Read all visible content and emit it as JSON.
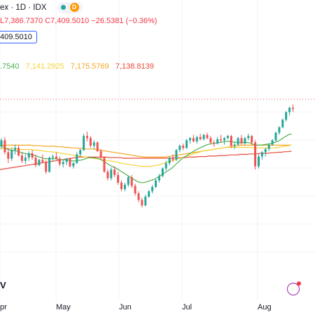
{
  "header": {
    "title_fragment": "ex · 1D · IDX",
    "timeframe_badge": "D",
    "ohlc_text": "L7,386.7370 C7,409.5010 −26.5381 (−0.36%)",
    "price_box": "409.5010",
    "ma_fragment": ".7540",
    "ma_values": [
      "7,141.2925",
      "7,175.5769",
      "7,138.8139"
    ],
    "ma_colors": [
      "#f2d338",
      "#f5a623",
      "#e84b3a"
    ]
  },
  "watermark": "V",
  "colors": {
    "up": "#26a69a",
    "down": "#ef5350",
    "ma_green": "#4caf50",
    "ma_yellow": "#f2d338",
    "ma_orange": "#f5a623",
    "ma_red": "#e84b3a",
    "grid": "#f0f3fa"
  },
  "chart_data": {
    "type": "candlestick",
    "x_ticks": [
      "pr",
      "May",
      "Jun",
      "Jul",
      "Aug"
    ],
    "current_price": 7409.501,
    "candles": [
      [
        6980,
        7050,
        6950,
        7030
      ],
      [
        7030,
        7060,
        6900,
        6920
      ],
      [
        6920,
        6960,
        6820,
        6860
      ],
      [
        6860,
        6960,
        6840,
        6940
      ],
      [
        6940,
        6990,
        6900,
        6960
      ],
      [
        6960,
        6980,
        6880,
        6890
      ],
      [
        6890,
        6920,
        6820,
        6840
      ],
      [
        6840,
        6900,
        6810,
        6870
      ],
      [
        6870,
        6930,
        6840,
        6910
      ],
      [
        6910,
        6940,
        6850,
        6870
      ],
      [
        6870,
        6900,
        6780,
        6800
      ],
      [
        6800,
        6860,
        6790,
        6850
      ],
      [
        6850,
        6900,
        6820,
        6830
      ],
      [
        6830,
        6850,
        6720,
        6740
      ],
      [
        6740,
        6880,
        6730,
        6870
      ],
      [
        6870,
        6900,
        6840,
        6880
      ],
      [
        6880,
        6920,
        6850,
        6860
      ],
      [
        6860,
        6880,
        6790,
        6810
      ],
      [
        6810,
        6850,
        6780,
        6830
      ],
      [
        6830,
        6870,
        6800,
        6860
      ],
      [
        6860,
        6870,
        6780,
        6790
      ],
      [
        6790,
        6830,
        6770,
        6820
      ],
      [
        6820,
        6920,
        6810,
        6900
      ],
      [
        6900,
        6950,
        6880,
        6940
      ],
      [
        6940,
        7090,
        6930,
        7070
      ],
      [
        7070,
        7110,
        7020,
        7050
      ],
      [
        7050,
        7070,
        6960,
        6980
      ],
      [
        6980,
        7030,
        6950,
        7010
      ],
      [
        7010,
        7020,
        6920,
        6930
      ],
      [
        6930,
        6950,
        6850,
        6870
      ],
      [
        6870,
        6880,
        6730,
        6740
      ],
      [
        6740,
        6760,
        6660,
        6680
      ],
      [
        6680,
        6780,
        6660,
        6760
      ],
      [
        6760,
        6790,
        6690,
        6710
      ],
      [
        6710,
        6740,
        6620,
        6640
      ],
      [
        6640,
        6660,
        6560,
        6580
      ],
      [
        6580,
        6640,
        6560,
        6620
      ],
      [
        6620,
        6700,
        6600,
        6690
      ],
      [
        6690,
        6710,
        6590,
        6610
      ],
      [
        6610,
        6630,
        6520,
        6540
      ],
      [
        6540,
        6560,
        6460,
        6480
      ],
      [
        6480,
        6500,
        6410,
        6430
      ],
      [
        6430,
        6530,
        6420,
        6510
      ],
      [
        6510,
        6570,
        6500,
        6560
      ],
      [
        6560,
        6620,
        6540,
        6600
      ],
      [
        6600,
        6670,
        6590,
        6660
      ],
      [
        6660,
        6720,
        6640,
        6700
      ],
      [
        6700,
        6780,
        6690,
        6770
      ],
      [
        6770,
        6840,
        6750,
        6820
      ],
      [
        6820,
        6880,
        6800,
        6870
      ],
      [
        6870,
        6900,
        6830,
        6850
      ],
      [
        6850,
        6950,
        6840,
        6940
      ],
      [
        6940,
        6990,
        6920,
        6980
      ],
      [
        6980,
        7000,
        6940,
        6960
      ],
      [
        6960,
        7040,
        6950,
        7030
      ],
      [
        7030,
        7060,
        7000,
        7050
      ],
      [
        7050,
        7080,
        7010,
        7020
      ],
      [
        7020,
        7070,
        7000,
        7060
      ],
      [
        7060,
        7090,
        7030,
        7040
      ],
      [
        7040,
        7090,
        7030,
        7080
      ],
      [
        7080,
        7100,
        7040,
        7050
      ],
      [
        7050,
        7070,
        6990,
        7010
      ],
      [
        7010,
        7030,
        6970,
        7000
      ],
      [
        7000,
        7060,
        6990,
        7040
      ],
      [
        7040,
        7080,
        7010,
        7030
      ],
      [
        7030,
        7060,
        6990,
        7050
      ],
      [
        7050,
        7080,
        7040,
        7070
      ],
      [
        7070,
        7080,
        6960,
        6980
      ],
      [
        6980,
        7010,
        6950,
        6990
      ],
      [
        6990,
        7060,
        6980,
        7050
      ],
      [
        7050,
        7080,
        6990,
        7000
      ],
      [
        7000,
        7060,
        6990,
        7050
      ],
      [
        7050,
        7090,
        7030,
        7070
      ],
      [
        7070,
        7080,
        6990,
        7010
      ],
      [
        7010,
        7030,
        6760,
        6790
      ],
      [
        6790,
        6900,
        6770,
        6880
      ],
      [
        6880,
        6930,
        6850,
        6920
      ],
      [
        6920,
        6960,
        6880,
        6950
      ],
      [
        6950,
        7000,
        6930,
        6990
      ],
      [
        6990,
        7040,
        6980,
        7030
      ],
      [
        7030,
        7110,
        7020,
        7100
      ],
      [
        7100,
        7160,
        7080,
        7150
      ],
      [
        7150,
        7230,
        7140,
        7220
      ],
      [
        7220,
        7300,
        7200,
        7290
      ],
      [
        7290,
        7340,
        7260,
        7330
      ],
      [
        7330,
        7360,
        7290,
        7320
      ]
    ],
    "ma_green": [
      6980,
      6970,
      6950,
      6940,
      6935,
      6930,
      6920,
      6910,
      6905,
      6900,
      6890,
      6880,
      6870,
      6860,
      6860,
      6860,
      6860,
      6855,
      6850,
      6850,
      6845,
      6840,
      6840,
      6845,
      6850,
      6860,
      6870,
      6870,
      6865,
      6860,
      6840,
      6820,
      6800,
      6785,
      6770,
      6750,
      6730,
      6710,
      6690,
      6670,
      6650,
      6640,
      6640,
      6650,
      6660,
      6670,
      6690,
      6710,
      6730,
      6750,
      6770,
      6800,
      6830,
      6860,
      6880,
      6900,
      6920,
      6940,
      6955,
      6970,
      6985,
      6995,
      7000,
      7005,
      7010,
      7015,
      7020,
      7020,
      7015,
      7010,
      7010,
      7010,
      7010,
      7005,
      6990,
      6985,
      6985,
      6990,
      6995,
      7000,
      7010,
      7020,
      7040,
      7060,
      7080,
      7090
    ],
    "ma_yellow": [
      6955,
      6955,
      6955,
      6955,
      6955,
      6950,
      6945,
      6945,
      6945,
      6945,
      6940,
      6940,
      6935,
      6930,
      6925,
      6925,
      6920,
      6915,
      6910,
      6905,
      6900,
      6895,
      6890,
      6885,
      6880,
      6875,
      6870,
      6865,
      6860,
      6855,
      6850,
      6845,
      6840,
      6835,
      6830,
      6820,
      6815,
      6810,
      6805,
      6800,
      6795,
      6790,
      6790,
      6790,
      6790,
      6795,
      6800,
      6810,
      6820,
      6830,
      6840,
      6850,
      6860,
      6870,
      6880,
      6890,
      6900,
      6910,
      6920,
      6930,
      6935,
      6940,
      6945,
      6950,
      6955,
      6960,
      6965,
      6965,
      6965,
      6965,
      6965,
      6965,
      6965,
      6965,
      6960,
      6960,
      6960,
      6960,
      6960,
      6960,
      6960,
      6965,
      6970,
      6975,
      6980,
      6985
    ],
    "ma_orange": [
      6985,
      6985,
      6985,
      6985,
      6985,
      6985,
      6985,
      6985,
      6985,
      6985,
      6980,
      6980,
      6980,
      6975,
      6975,
      6975,
      6975,
      6970,
      6970,
      6965,
      6965,
      6960,
      6960,
      6955,
      6955,
      6950,
      6950,
      6950,
      6945,
      6940,
      6935,
      6930,
      6925,
      6920,
      6915,
      6910,
      6905,
      6900,
      6895,
      6890,
      6885,
      6880,
      6875,
      6875,
      6875,
      6875,
      6875,
      6875,
      6875,
      6880,
      6885,
      6890,
      6895,
      6900,
      6905,
      6910,
      6915,
      6920,
      6925,
      6930,
      6935,
      6940,
      6945,
      6950,
      6955,
      6960,
      6965,
      6970,
      6975,
      6980,
      6985,
      6985,
      6985,
      6985,
      6985,
      6985,
      6985,
      6985,
      6985,
      6985,
      6985,
      6985,
      6985,
      6985,
      6985,
      6985
    ],
    "ma_red": [
      6760,
      6765,
      6770,
      6775,
      6780,
      6785,
      6790,
      6795,
      6800,
      6805,
      6810,
      6815,
      6820,
      6825,
      6830,
      6835,
      6840,
      6845,
      6850,
      6855,
      6860,
      6865,
      6870,
      6875,
      6875,
      6875,
      6875,
      6875,
      6875,
      6875,
      6875,
      6875,
      6870,
      6870,
      6870,
      6870,
      6865,
      6865,
      6865,
      6865,
      6865,
      6865,
      6865,
      6865,
      6865,
      6865,
      6865,
      6865,
      6865,
      6865,
      6865,
      6870,
      6870,
      6870,
      6870,
      6875,
      6875,
      6875,
      6880,
      6880,
      6880,
      6885,
      6885,
      6885,
      6890,
      6890,
      6890,
      6895,
      6895,
      6895,
      6900,
      6900,
      6900,
      6905,
      6905,
      6905,
      6910,
      6910,
      6910,
      6915,
      6915,
      6920,
      6920,
      6925,
      6925,
      6930
    ]
  }
}
